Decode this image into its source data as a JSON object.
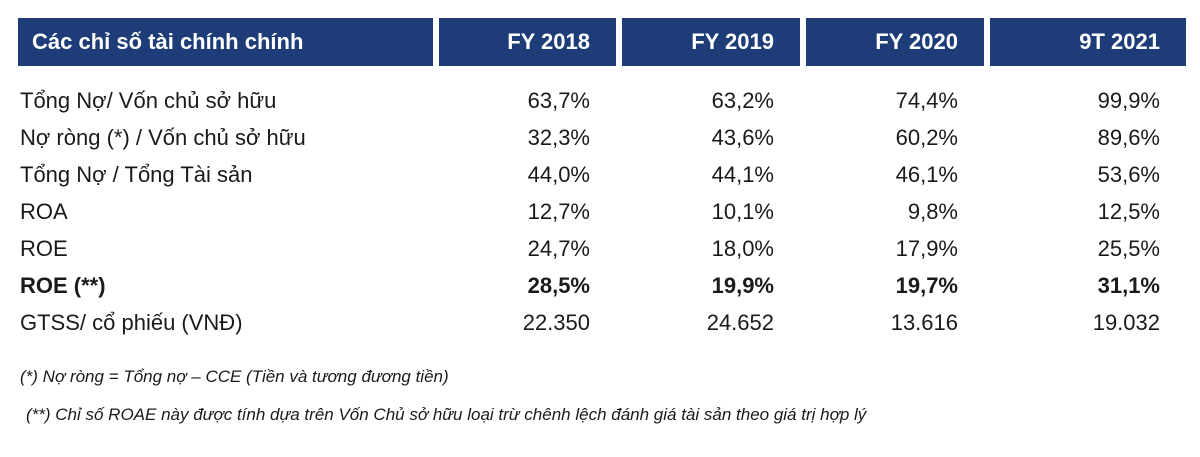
{
  "colors": {
    "header_bg": "#1e3d78",
    "header_text": "#ffffff",
    "body_text": "#1a1a1a"
  },
  "table": {
    "header": [
      "Các chỉ số tài chính chính",
      "FY 2018",
      "FY 2019",
      "FY 2020",
      "9T 2021"
    ],
    "rows": [
      {
        "label": "Tổng Nợ/ Vốn chủ sở hữu",
        "values": [
          "63,7%",
          "63,2%",
          "74,4%",
          "99,9%"
        ],
        "bold": false
      },
      {
        "label": "Nợ ròng (*) / Vốn chủ sở hữu",
        "values": [
          "32,3%",
          "43,6%",
          "60,2%",
          "89,6%"
        ],
        "bold": false
      },
      {
        "label": "Tổng Nợ / Tổng Tài sản",
        "values": [
          "44,0%",
          "44,1%",
          "46,1%",
          "53,6%"
        ],
        "bold": false
      },
      {
        "label": "ROA",
        "values": [
          "12,7%",
          "10,1%",
          "9,8%",
          "12,5%"
        ],
        "bold": false
      },
      {
        "label": "ROE",
        "values": [
          "24,7%",
          "18,0%",
          "17,9%",
          "25,5%"
        ],
        "bold": false
      },
      {
        "label": "ROE (**)",
        "values": [
          "28,5%",
          "19,9%",
          "19,7%",
          "31,1%"
        ],
        "bold": true
      },
      {
        "label": "GTSS/ cổ phiếu (VNĐ)",
        "values": [
          "22.350",
          "24.652",
          "13.616",
          "19.032"
        ],
        "bold": false
      }
    ]
  },
  "footnotes": [
    "(*) Nợ ròng = Tổng nợ – CCE (Tiền và tương đương tiền)",
    "(**) Chỉ số ROAE này được tính dựa trên Vốn Chủ sở hữu loại trừ chênh lệch đánh giá tài sản theo giá trị hợp lý"
  ]
}
